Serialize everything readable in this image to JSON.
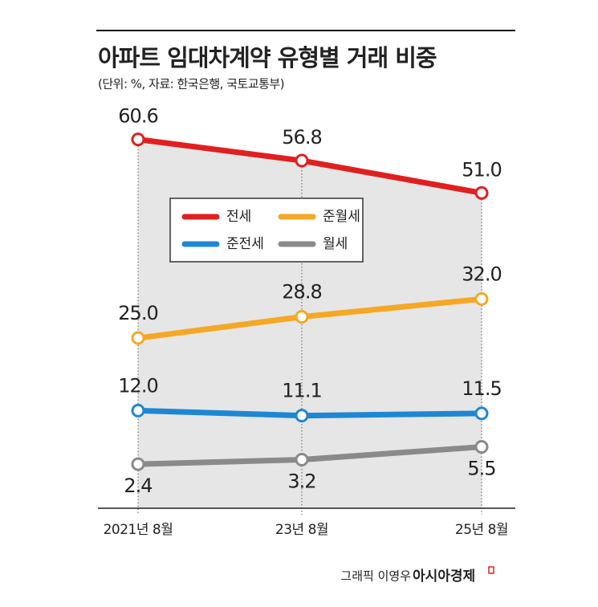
{
  "chart_data": {
    "type": "line",
    "title": "아파트 임대차계약 유형별 거래 비중",
    "subtitle": "(단위: %, 자료: 한국은행, 국토교통부)",
    "categories": [
      "2021년 8월",
      "23년 8월",
      "25년 8월"
    ],
    "ylim": [
      -5.5,
      64
    ],
    "series": [
      {
        "name": "전세",
        "color": "#e0201f",
        "values": [
          60.6,
          56.8,
          51.0
        ],
        "value_labels": [
          "60.6",
          "56.8",
          "51.0"
        ]
      },
      {
        "name": "준월세",
        "color": "#f5a825",
        "values": [
          25.0,
          28.8,
          32.0
        ],
        "value_labels": [
          "25.0",
          "28.8",
          "32.0"
        ]
      },
      {
        "name": "준전세",
        "color": "#1d87d4",
        "values": [
          12.0,
          11.1,
          11.5
        ],
        "value_labels": [
          "12.0",
          "11.1",
          "11.5"
        ]
      },
      {
        "name": "월세",
        "color": "#8a8a8a",
        "values": [
          2.4,
          3.2,
          5.5
        ],
        "value_labels": [
          "2.4",
          "3.2",
          "5.5"
        ]
      }
    ],
    "credit": "그래픽 이영우",
    "brand": "아시아경제"
  }
}
